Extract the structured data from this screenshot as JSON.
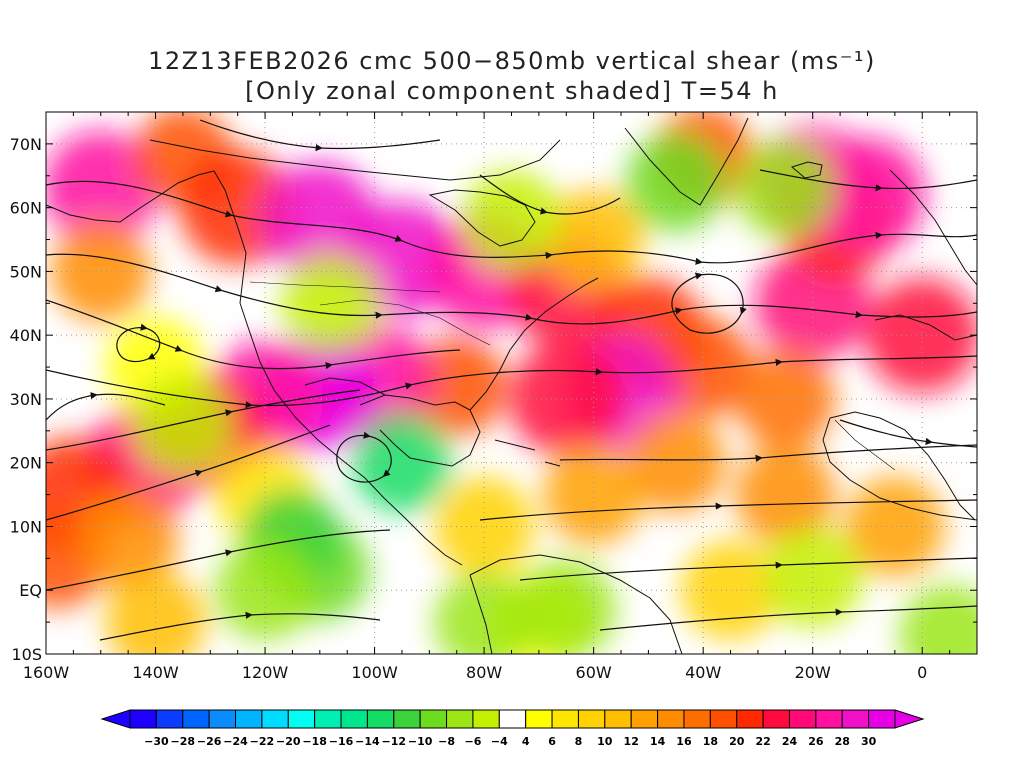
{
  "title": {
    "line1": "12Z13FEB2026 cmc 500−850mb vertical shear (ms⁻¹)",
    "line2": "[Only zonal component shaded] T=54 h"
  },
  "axes": {
    "lat_labels": [
      "70N",
      "60N",
      "50N",
      "40N",
      "30N",
      "20N",
      "10N",
      "EQ",
      "10S"
    ],
    "lat_values": [
      70,
      60,
      50,
      40,
      30,
      20,
      10,
      0,
      -10
    ],
    "lon_labels": [
      "160W",
      "140W",
      "120W",
      "100W",
      "80W",
      "60W",
      "40W",
      "20W",
      "0"
    ],
    "lon_values": [
      -160,
      -140,
      -120,
      -100,
      -80,
      -60,
      -40,
      -20,
      0
    ],
    "lon_range": [
      -160,
      10
    ],
    "lat_range": [
      -10,
      75
    ],
    "grid": "dotted"
  },
  "colorbar": {
    "labels": [
      "−30",
      "−28",
      "−26",
      "−24",
      "−22",
      "−20",
      "−18",
      "−16",
      "−14",
      "−12",
      "−10",
      "−8",
      "−6",
      "−4",
      "4",
      "6",
      "8",
      "10",
      "12",
      "14",
      "16",
      "18",
      "20",
      "22",
      "24",
      "26",
      "28",
      "30"
    ],
    "values": [
      -30,
      -28,
      -26,
      -24,
      -22,
      -20,
      -18,
      -16,
      -14,
      -12,
      -10,
      -8,
      -6,
      -4,
      4,
      6,
      8,
      10,
      12,
      14,
      16,
      18,
      20,
      22,
      24,
      26,
      28,
      30
    ],
    "colors": [
      "#1e00ff",
      "#0b3cff",
      "#0064ff",
      "#0a8cff",
      "#00b4ff",
      "#00dcff",
      "#00fff0",
      "#00f0b4",
      "#00e68c",
      "#14dc64",
      "#3cd23c",
      "#6edc1e",
      "#9be614",
      "#c3f000",
      "#ffffff",
      "#ffff00",
      "#ffe600",
      "#ffd200",
      "#ffbe00",
      "#ffa000",
      "#ff8c00",
      "#ff6e00",
      "#ff5000",
      "#ff2800",
      "#ff0a3c",
      "#ff0a78",
      "#ff10a0",
      "#f010c8",
      "#e600e6"
    ]
  },
  "shear_field": [
    {
      "lon": -150,
      "lat": 63,
      "v": 26
    },
    {
      "lon": -135,
      "lat": 68,
      "v": 18
    },
    {
      "lon": -150,
      "lat": 50,
      "v": 14
    },
    {
      "lon": -125,
      "lat": 60,
      "v": 20
    },
    {
      "lon": -110,
      "lat": 58,
      "v": 28
    },
    {
      "lon": -95,
      "lat": 52,
      "v": 28
    },
    {
      "lon": -80,
      "lat": 50,
      "v": 26
    },
    {
      "lon": -65,
      "lat": 47,
      "v": 22
    },
    {
      "lon": -50,
      "lat": 40,
      "v": 20
    },
    {
      "lon": -40,
      "lat": 35,
      "v": 18
    },
    {
      "lon": -55,
      "lat": 31,
      "v": 28
    },
    {
      "lon": -65,
      "lat": 30,
      "v": 22
    },
    {
      "lon": -85,
      "lat": 32,
      "v": 18
    },
    {
      "lon": -100,
      "lat": 33,
      "v": 26
    },
    {
      "lon": -110,
      "lat": 31,
      "v": 30
    },
    {
      "lon": -120,
      "lat": 30,
      "v": 26
    },
    {
      "lon": -130,
      "lat": 25,
      "v": 22
    },
    {
      "lon": -142,
      "lat": 20,
      "v": 24
    },
    {
      "lon": -155,
      "lat": 15,
      "v": 20
    },
    {
      "lon": -158,
      "lat": 5,
      "v": 18
    },
    {
      "lon": -145,
      "lat": 8,
      "v": 14
    },
    {
      "lon": -120,
      "lat": 15,
      "v": 6
    },
    {
      "lon": -20,
      "lat": 45,
      "v": 24
    },
    {
      "lon": -15,
      "lat": 58,
      "v": 20
    },
    {
      "lon": -10,
      "lat": 62,
      "v": 26
    },
    {
      "lon": -20,
      "lat": 64,
      "v": 26
    },
    {
      "lon": 0,
      "lat": 40,
      "v": 22
    },
    {
      "lon": -25,
      "lat": 30,
      "v": 16
    },
    {
      "lon": -45,
      "lat": 20,
      "v": 14
    },
    {
      "lon": -25,
      "lat": 15,
      "v": 14
    },
    {
      "lon": -60,
      "lat": 15,
      "v": 12
    },
    {
      "lon": -80,
      "lat": 10,
      "v": 8
    },
    {
      "lon": -5,
      "lat": 10,
      "v": 12
    },
    {
      "lon": -140,
      "lat": -5,
      "v": 10
    },
    {
      "lon": -35,
      "lat": 0,
      "v": 8
    },
    {
      "lon": -60,
      "lat": 55,
      "v": 10
    },
    {
      "lon": -40,
      "lat": 68,
      "v": 18
    },
    {
      "lon": -70,
      "lat": -5,
      "v": 4
    },
    {
      "lon": -140,
      "lat": 35,
      "v": 4
    },
    {
      "lon": -110,
      "lat": 3,
      "v": -10
    },
    {
      "lon": -115,
      "lat": 8,
      "v": -12
    },
    {
      "lon": -95,
      "lat": 20,
      "v": -14
    },
    {
      "lon": -120,
      "lat": 0,
      "v": -8
    },
    {
      "lon": -80,
      "lat": -5,
      "v": -8
    },
    {
      "lon": -65,
      "lat": -3,
      "v": -8
    },
    {
      "lon": -135,
      "lat": 26,
      "v": -6
    },
    {
      "lon": -75,
      "lat": 58,
      "v": -6
    },
    {
      "lon": -45,
      "lat": 64,
      "v": -10
    },
    {
      "lon": -25,
      "lat": 63,
      "v": -8
    },
    {
      "lon": -108,
      "lat": 45,
      "v": -6
    },
    {
      "lon": -20,
      "lat": 2,
      "v": -6
    },
    {
      "lon": 5,
      "lat": -7,
      "v": -8
    }
  ]
}
